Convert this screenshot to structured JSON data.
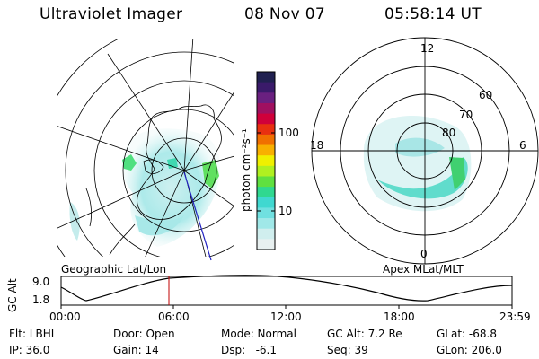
{
  "header": {
    "instrument": "Ultraviolet Imager",
    "date": "08 Nov 07",
    "time": "05:58:14 UT"
  },
  "geographic_panel": {
    "label": "Geographic Lat/Lon"
  },
  "apex_panel": {
    "label": "Apex MLat/MLT",
    "mlt_labels": [
      "12",
      "18",
      "6",
      "0"
    ],
    "lat_labels": [
      "60",
      "70",
      "80"
    ]
  },
  "colorbar": {
    "unit_label": "photon cm⁻²s⁻¹",
    "tick_labels": [
      "100",
      "10"
    ],
    "colors": [
      "#202050",
      "#3a1a6a",
      "#6a2080",
      "#a01060",
      "#d0003a",
      "#e83010",
      "#f07000",
      "#f8b000",
      "#f0f000",
      "#b0f020",
      "#60e040",
      "#30d890",
      "#40d8d0",
      "#70e0e0",
      "#a0e8e8",
      "#d0eeee",
      "#e8f0f0"
    ]
  },
  "gc_alt_plot": {
    "ylabel": "GC Alt",
    "y_ticks": [
      "9.0",
      "1.8"
    ],
    "x_ticks": [
      "00:00",
      "06:00",
      "12:00",
      "18:00",
      "23:59"
    ],
    "marker_color": "#c00000"
  },
  "info": {
    "col1": [
      "Flt: LBHL",
      "IP: 36.0"
    ],
    "col2": [
      "Door: Open",
      "Gain: 14"
    ],
    "col3a": [
      "Mode: Normal",
      "Dsp:   -6.1"
    ],
    "col3b": [
      "GC Alt: 7.2 Re",
      "Seq: 39"
    ],
    "col4": [
      "GLat: -68.8",
      "GLon: 206.0"
    ]
  }
}
